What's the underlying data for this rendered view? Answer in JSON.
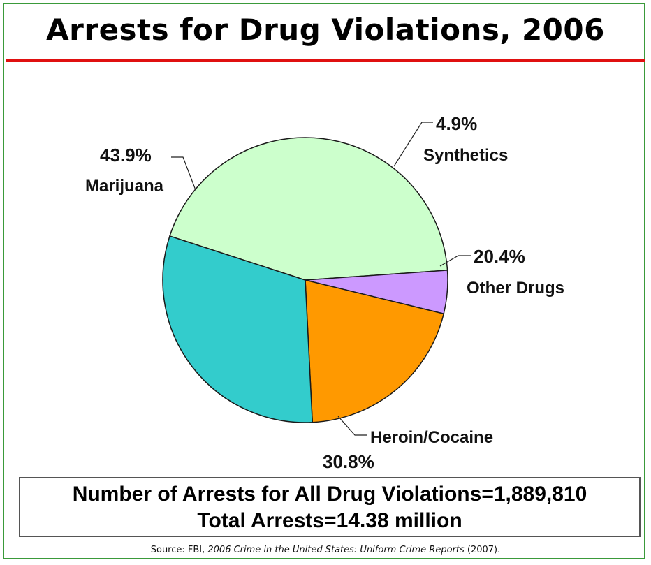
{
  "title": "Arrests for Drug Violations, 2006",
  "summary": {
    "line1": "Number of Arrests for All Drug Violations=1,889,810",
    "line2": "Total Arrests=14.38 million"
  },
  "source": {
    "prefix": "Source:  FBI, ",
    "italic": "2006 Crime in the United States:  Uniform Crime Reports",
    "suffix": " (2007)."
  },
  "chart_data": {
    "type": "pie",
    "slices": [
      {
        "label": "Marijuana",
        "value": 43.9,
        "value_label": "43.9%",
        "color": "#ccffcc"
      },
      {
        "label": "Synthetics",
        "value": 4.9,
        "value_label": "4.9%",
        "color": "#cc99ff"
      },
      {
        "label": "Other Drugs",
        "value": 20.4,
        "value_label": "20.4%",
        "color": "#ff9900"
      },
      {
        "label": "Heroin/Cocaine",
        "value": 30.8,
        "value_label": "30.8%",
        "color": "#33cccc"
      }
    ]
  }
}
